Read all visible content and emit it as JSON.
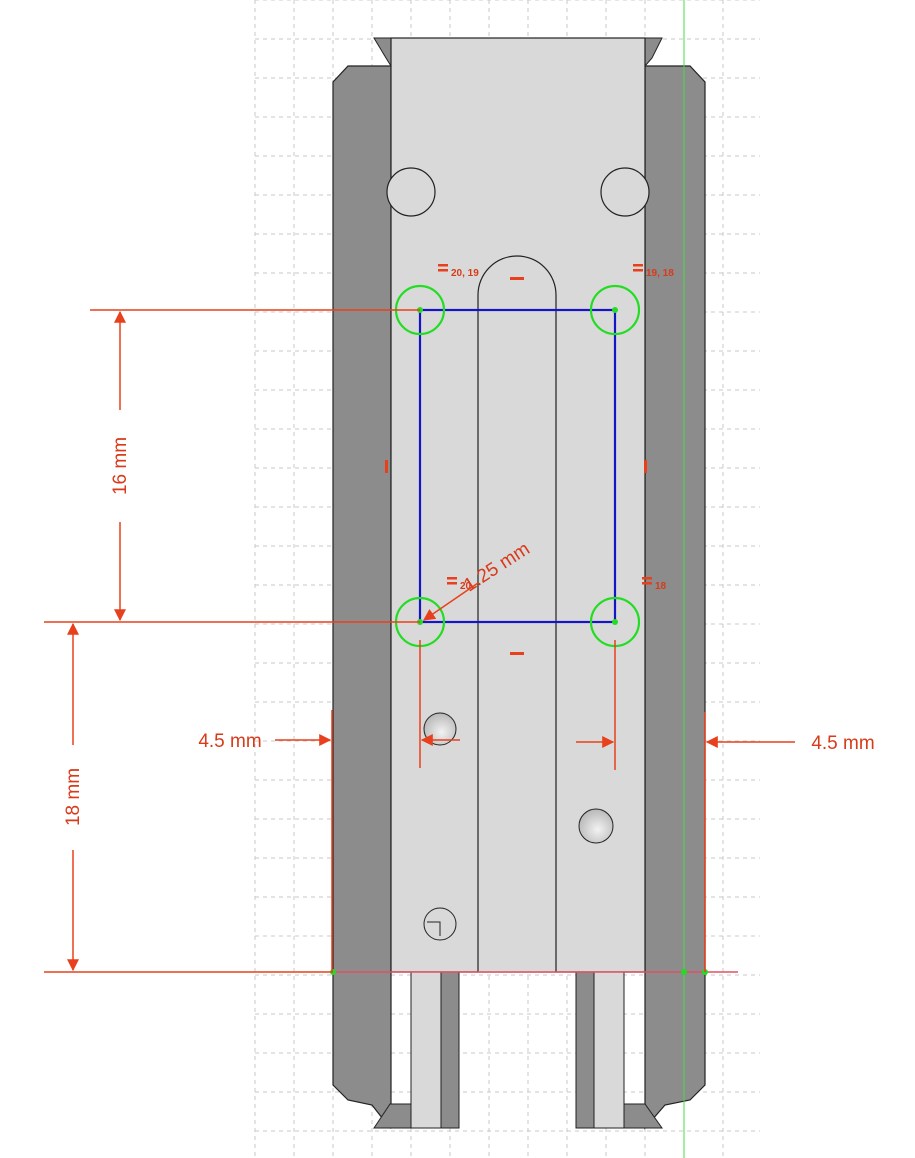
{
  "dimensions": {
    "vertical_upper": "16 mm",
    "vertical_lower": "18 mm",
    "left_offset": "4.5 mm",
    "right_offset": "4.5 mm",
    "radius": "1.25 mm"
  },
  "constraints": {
    "top_left": "20, 19",
    "top_right": "19, 18",
    "bottom_left": "20",
    "bottom_right": "18"
  },
  "colors": {
    "dimension": "#d83a1a",
    "sketch_line": "#1515c8",
    "constraint_circle": "#22dd22",
    "origin_axis": "#44dd44",
    "body_light": "#d9d9d9",
    "body_dark": "#8c8c8c",
    "grid": "#c8c8c8"
  }
}
